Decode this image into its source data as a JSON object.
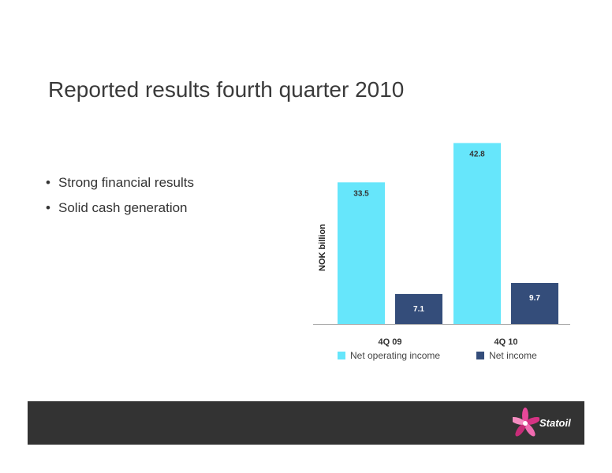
{
  "slide": {
    "title": "Reported results fourth quarter 2010",
    "bullets": [
      "Strong financial results",
      "Solid cash generation"
    ]
  },
  "brand": {
    "name": "Statoil",
    "footer_color": "#333333"
  },
  "chart_data": {
    "type": "bar",
    "categories": [
      "4Q 09",
      "4Q 10"
    ],
    "series": [
      {
        "name": "Net operating income",
        "values": [
          33.5,
          42.8
        ],
        "color": "#66e6fb"
      },
      {
        "name": "Net income",
        "values": [
          7.1,
          9.7
        ],
        "color": "#344d7a"
      }
    ],
    "ylabel": "NOK billion",
    "ylim": [
      0,
      44
    ],
    "grid": false,
    "legend_position": "bottom"
  }
}
